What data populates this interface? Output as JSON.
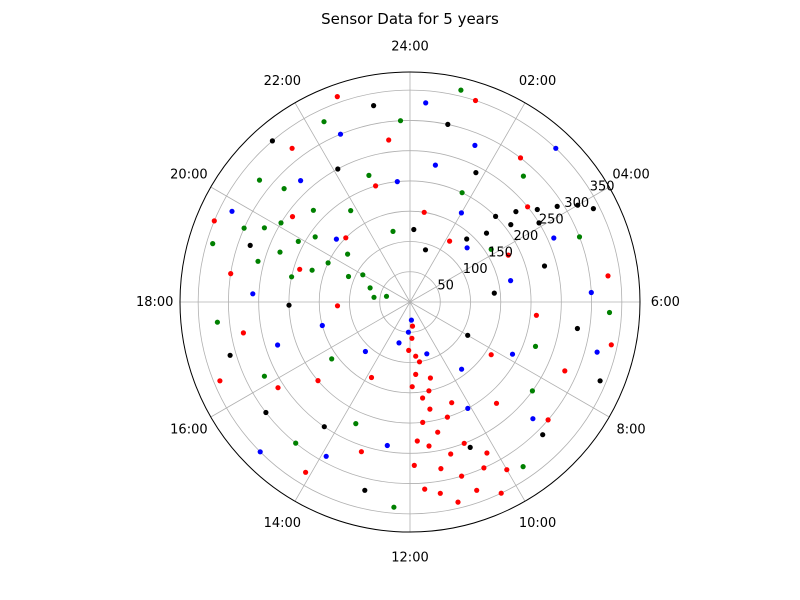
{
  "chart_data": {
    "type": "scatter",
    "projection": "polar",
    "title": "Sensor Data for 5 years",
    "angle_zero": "top",
    "angle_direction": "clockwise",
    "angle_unit": "hours",
    "angle_range": [
      0,
      24
    ],
    "angle_ticks": [
      {
        "hour": 0,
        "label": "24:00"
      },
      {
        "hour": 2,
        "label": "02:00"
      },
      {
        "hour": 4,
        "label": "04:00"
      },
      {
        "hour": 6,
        "label": "6:00"
      },
      {
        "hour": 8,
        "label": "8:00"
      },
      {
        "hour": 10,
        "label": "10:00"
      },
      {
        "hour": 12,
        "label": "12:00"
      },
      {
        "hour": 14,
        "label": "14:00"
      },
      {
        "hour": 16,
        "label": "16:00"
      },
      {
        "hour": 18,
        "label": "18:00"
      },
      {
        "hour": 20,
        "label": "20:00"
      },
      {
        "hour": 22,
        "label": "22:00"
      }
    ],
    "rlim": [
      0,
      380
    ],
    "radial_ticks": [
      {
        "value": 50,
        "label": "50"
      },
      {
        "value": 100,
        "label": "100"
      },
      {
        "value": 150,
        "label": "150"
      },
      {
        "value": 200,
        "label": "200"
      },
      {
        "value": 250,
        "label": "250"
      },
      {
        "value": 300,
        "label": "300"
      },
      {
        "value": 350,
        "label": "350"
      }
    ],
    "grid": true,
    "legend": "none",
    "series": [
      {
        "color": "#ff0000",
        "points": [
          {
            "hour": 11.6,
            "r": 40
          },
          {
            "hour": 11.8,
            "r": 60
          },
          {
            "hour": 12.1,
            "r": 80
          },
          {
            "hour": 11.4,
            "r": 100
          },
          {
            "hour": 11.7,
            "r": 120
          },
          {
            "hour": 11.9,
            "r": 140
          },
          {
            "hour": 11.5,
            "r": 160
          },
          {
            "hour": 11.3,
            "r": 180
          },
          {
            "hour": 11.6,
            "r": 200
          },
          {
            "hour": 11.2,
            "r": 220
          },
          {
            "hour": 11.5,
            "r": 240
          },
          {
            "hour": 11.0,
            "r": 260
          },
          {
            "hour": 11.3,
            "r": 280
          },
          {
            "hour": 10.9,
            "r": 300
          },
          {
            "hour": 11.4,
            "r": 320
          },
          {
            "hour": 11.1,
            "r": 340
          },
          {
            "hour": 10.8,
            "r": 200
          },
          {
            "hour": 10.6,
            "r": 250
          },
          {
            "hour": 10.4,
            "r": 300
          },
          {
            "hour": 10.7,
            "r": 330
          },
          {
            "hour": 11.8,
            "r": 230
          },
          {
            "hour": 11.9,
            "r": 270
          },
          {
            "hour": 11.7,
            "r": 310
          },
          {
            "hour": 10.5,
            "r": 180
          },
          {
            "hour": 10.2,
            "r": 280
          },
          {
            "hour": 10.0,
            "r": 320
          },
          {
            "hour": 10.3,
            "r": 350
          },
          {
            "hour": 11.2,
            "r": 150
          },
          {
            "hour": 11.0,
            "r": 130
          },
          {
            "hour": 11.6,
            "r": 90
          },
          {
            "hour": 1.2,
            "r": 350
          },
          {
            "hour": 2.5,
            "r": 300
          },
          {
            "hour": 3.4,
            "r": 250
          },
          {
            "hour": 5.5,
            "r": 330
          },
          {
            "hour": 6.8,
            "r": 340
          },
          {
            "hour": 7.6,
            "r": 280
          },
          {
            "hour": 8.7,
            "r": 300
          },
          {
            "hour": 9.3,
            "r": 220
          },
          {
            "hour": 13.2,
            "r": 260
          },
          {
            "hour": 14.1,
            "r": 330
          },
          {
            "hour": 15.3,
            "r": 200
          },
          {
            "hour": 16.5,
            "r": 340
          },
          {
            "hour": 17.3,
            "r": 280
          },
          {
            "hour": 18.6,
            "r": 300
          },
          {
            "hour": 19.5,
            "r": 350
          },
          {
            "hour": 20.4,
            "r": 240
          },
          {
            "hour": 21.5,
            "r": 320
          },
          {
            "hour": 22.7,
            "r": 360
          },
          {
            "hour": 23.5,
            "r": 270
          },
          {
            "hour": 0.6,
            "r": 150
          },
          {
            "hour": 2.2,
            "r": 120
          },
          {
            "hour": 4.3,
            "r": 180
          },
          {
            "hour": 6.4,
            "r": 210
          },
          {
            "hour": 8.2,
            "r": 160
          },
          {
            "hour": 13.8,
            "r": 140
          },
          {
            "hour": 15.8,
            "r": 260
          },
          {
            "hour": 17.8,
            "r": 120
          },
          {
            "hour": 19.1,
            "r": 190
          },
          {
            "hour": 21.0,
            "r": 150
          },
          {
            "hour": 22.9,
            "r": 200
          }
        ]
      },
      {
        "color": "#008000",
        "points": [
          {
            "hour": 19.6,
            "r": 300
          },
          {
            "hour": 19.8,
            "r": 270
          },
          {
            "hour": 20.1,
            "r": 250
          },
          {
            "hour": 19.4,
            "r": 230
          },
          {
            "hour": 19.9,
            "r": 210
          },
          {
            "hour": 20.3,
            "r": 190
          },
          {
            "hour": 19.2,
            "r": 170
          },
          {
            "hour": 19.7,
            "r": 150
          },
          {
            "hour": 20.5,
            "r": 130
          },
          {
            "hour": 19.5,
            "r": 110
          },
          {
            "hour": 20.0,
            "r": 90
          },
          {
            "hour": 19.3,
            "r": 70
          },
          {
            "hour": 20.6,
            "r": 320
          },
          {
            "hour": 20.8,
            "r": 280
          },
          {
            "hour": 19.0,
            "r": 260
          },
          {
            "hour": 18.8,
            "r": 200
          },
          {
            "hour": 20.9,
            "r": 220
          },
          {
            "hour": 19.1,
            "r": 340
          },
          {
            "hour": 18.5,
            "r": 60
          },
          {
            "hour": 18.9,
            "r": 40
          },
          {
            "hour": 22.3,
            "r": 330
          },
          {
            "hour": 0.9,
            "r": 360
          },
          {
            "hour": 2.8,
            "r": 280
          },
          {
            "hour": 4.6,
            "r": 300
          },
          {
            "hour": 6.2,
            "r": 330
          },
          {
            "hour": 8.4,
            "r": 250
          },
          {
            "hour": 9.7,
            "r": 330
          },
          {
            "hour": 12.3,
            "r": 340
          },
          {
            "hour": 14.6,
            "r": 300
          },
          {
            "hour": 16.2,
            "r": 270
          },
          {
            "hour": 17.6,
            "r": 320
          },
          {
            "hour": 22.8,
            "r": 220
          },
          {
            "hour": 23.8,
            "r": 300
          },
          {
            "hour": 1.7,
            "r": 200
          },
          {
            "hour": 3.8,
            "r": 160
          },
          {
            "hour": 7.3,
            "r": 220
          },
          {
            "hour": 13.6,
            "r": 220
          },
          {
            "hour": 15.6,
            "r": 160
          },
          {
            "hour": 21.8,
            "r": 180
          },
          {
            "hour": 23.1,
            "r": 120
          }
        ]
      },
      {
        "color": "#0000ff",
        "points": [
          {
            "hour": 0.3,
            "r": 330
          },
          {
            "hour": 1.5,
            "r": 280
          },
          {
            "hour": 2.9,
            "r": 350
          },
          {
            "hour": 4.4,
            "r": 260
          },
          {
            "hour": 5.8,
            "r": 300
          },
          {
            "hour": 7.0,
            "r": 320
          },
          {
            "hour": 8.9,
            "r": 280
          },
          {
            "hour": 10.1,
            "r": 200
          },
          {
            "hour": 12.6,
            "r": 240
          },
          {
            "hour": 13.9,
            "r": 290
          },
          {
            "hour": 15.0,
            "r": 350
          },
          {
            "hour": 16.8,
            "r": 230
          },
          {
            "hour": 18.2,
            "r": 260
          },
          {
            "hour": 19.8,
            "r": 330
          },
          {
            "hour": 21.2,
            "r": 270
          },
          {
            "hour": 22.5,
            "r": 300
          },
          {
            "hour": 23.6,
            "r": 200
          },
          {
            "hour": 11.7,
            "r": 30
          },
          {
            "hour": 12.2,
            "r": 50
          },
          {
            "hour": 13.0,
            "r": 70
          },
          {
            "hour": 10.8,
            "r": 90
          },
          {
            "hour": 14.8,
            "r": 110
          },
          {
            "hour": 17.0,
            "r": 150
          },
          {
            "hour": 3.1,
            "r": 130
          },
          {
            "hour": 5.2,
            "r": 170
          },
          {
            "hour": 7.8,
            "r": 190
          },
          {
            "hour": 9.5,
            "r": 140
          },
          {
            "hour": 20.7,
            "r": 160
          },
          {
            "hour": 0.7,
            "r": 230
          },
          {
            "hour": 2.0,
            "r": 170
          }
        ]
      },
      {
        "color": "#000000",
        "points": [
          {
            "hour": 3.0,
            "r": 200
          },
          {
            "hour": 3.3,
            "r": 230
          },
          {
            "hour": 3.6,
            "r": 260
          },
          {
            "hour": 3.8,
            "r": 290
          },
          {
            "hour": 4.0,
            "r": 320
          },
          {
            "hour": 3.2,
            "r": 170
          },
          {
            "hour": 2.8,
            "r": 140
          },
          {
            "hour": 4.2,
            "r": 340
          },
          {
            "hour": 3.5,
            "r": 210
          },
          {
            "hour": 3.9,
            "r": 250
          },
          {
            "hour": 0.8,
            "r": 300
          },
          {
            "hour": 1.8,
            "r": 240
          },
          {
            "hour": 5.0,
            "r": 230
          },
          {
            "hour": 6.6,
            "r": 280
          },
          {
            "hour": 7.5,
            "r": 340
          },
          {
            "hour": 9.0,
            "r": 310
          },
          {
            "hour": 10.5,
            "r": 260
          },
          {
            "hour": 12.9,
            "r": 320
          },
          {
            "hour": 14.3,
            "r": 250
          },
          {
            "hour": 15.5,
            "r": 300
          },
          {
            "hour": 16.9,
            "r": 310
          },
          {
            "hour": 17.9,
            "r": 200
          },
          {
            "hour": 19.3,
            "r": 280
          },
          {
            "hour": 21.3,
            "r": 350
          },
          {
            "hour": 22.1,
            "r": 250
          },
          {
            "hour": 23.3,
            "r": 330
          },
          {
            "hour": 0.2,
            "r": 120
          },
          {
            "hour": 1.1,
            "r": 90
          },
          {
            "hour": 5.6,
            "r": 140
          },
          {
            "hour": 8.0,
            "r": 110
          }
        ]
      }
    ]
  }
}
